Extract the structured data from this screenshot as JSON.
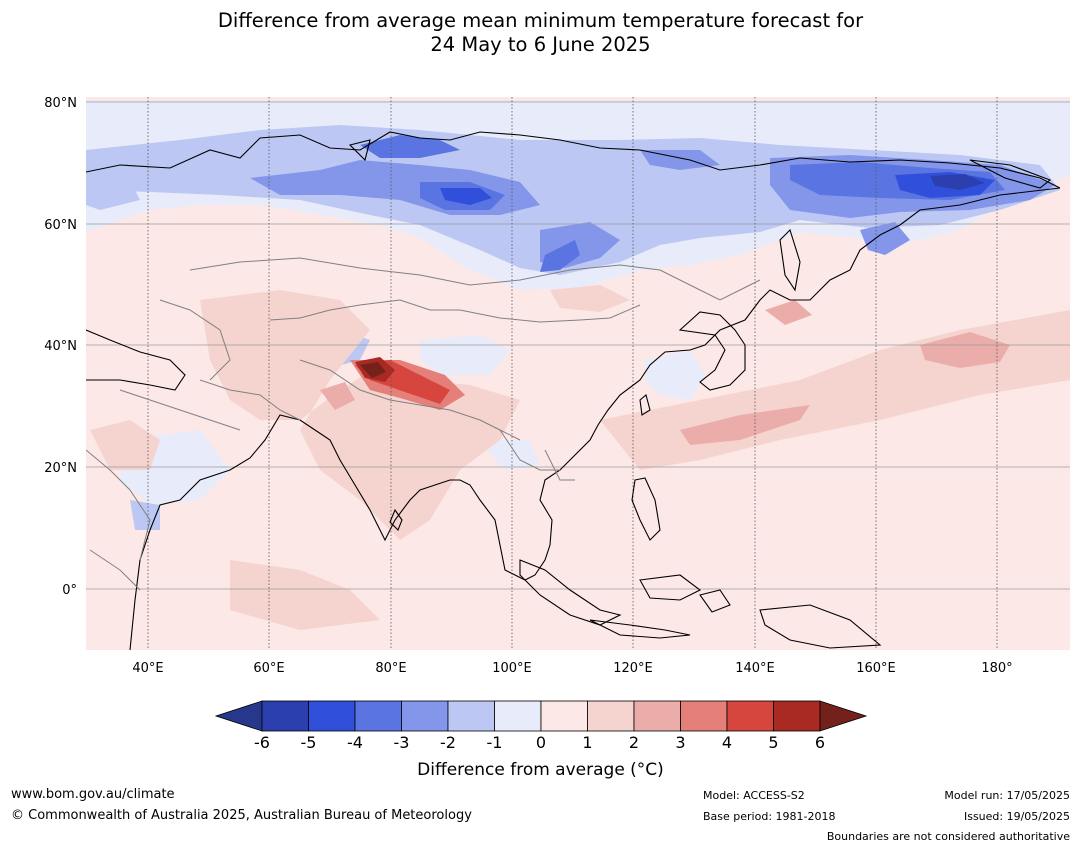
{
  "title": {
    "line1": "Difference from average mean minimum temperature forecast for",
    "line2": "24 May to 6 June 2025"
  },
  "map": {
    "region": "Asia",
    "lon_range": [
      30,
      191
    ],
    "lat_range": [
      -10,
      80
    ],
    "lat_ticks": [
      "80°N",
      "60°N",
      "40°N",
      "20°N",
      "0°"
    ],
    "lon_ticks": [
      "40°E",
      "60°E",
      "80°E",
      "100°E",
      "120°E",
      "140°E",
      "160°E",
      "180°"
    ]
  },
  "colorbar": {
    "title": "Difference from average (°C)",
    "tick_labels": [
      "-6",
      "-5",
      "-4",
      "-3",
      "-2",
      "-1",
      "0",
      "1",
      "2",
      "3",
      "4",
      "5",
      "6"
    ],
    "colors": [
      "#27378c",
      "#2b3fae",
      "#3050dc",
      "#5a75e2",
      "#8496ea",
      "#bcc8f3",
      "#e8ebfa",
      "#fce9e7",
      "#f5d3cf",
      "#ebadaa",
      "#e48079",
      "#d6463f",
      "#a82a23",
      "#74201b"
    ]
  },
  "footer": {
    "website": "www.bom.gov.au/climate",
    "copyright": "© Commonwealth of Australia 2025, Australian Bureau of Meteorology",
    "model": "Model: ACCESS-S2",
    "base_period": "Base period: 1981-2018",
    "model_run": "Model run: 17/05/2025",
    "issued": "Issued: 19/05/2025",
    "disclaimer": "Boundaries are not considered authoritative"
  }
}
